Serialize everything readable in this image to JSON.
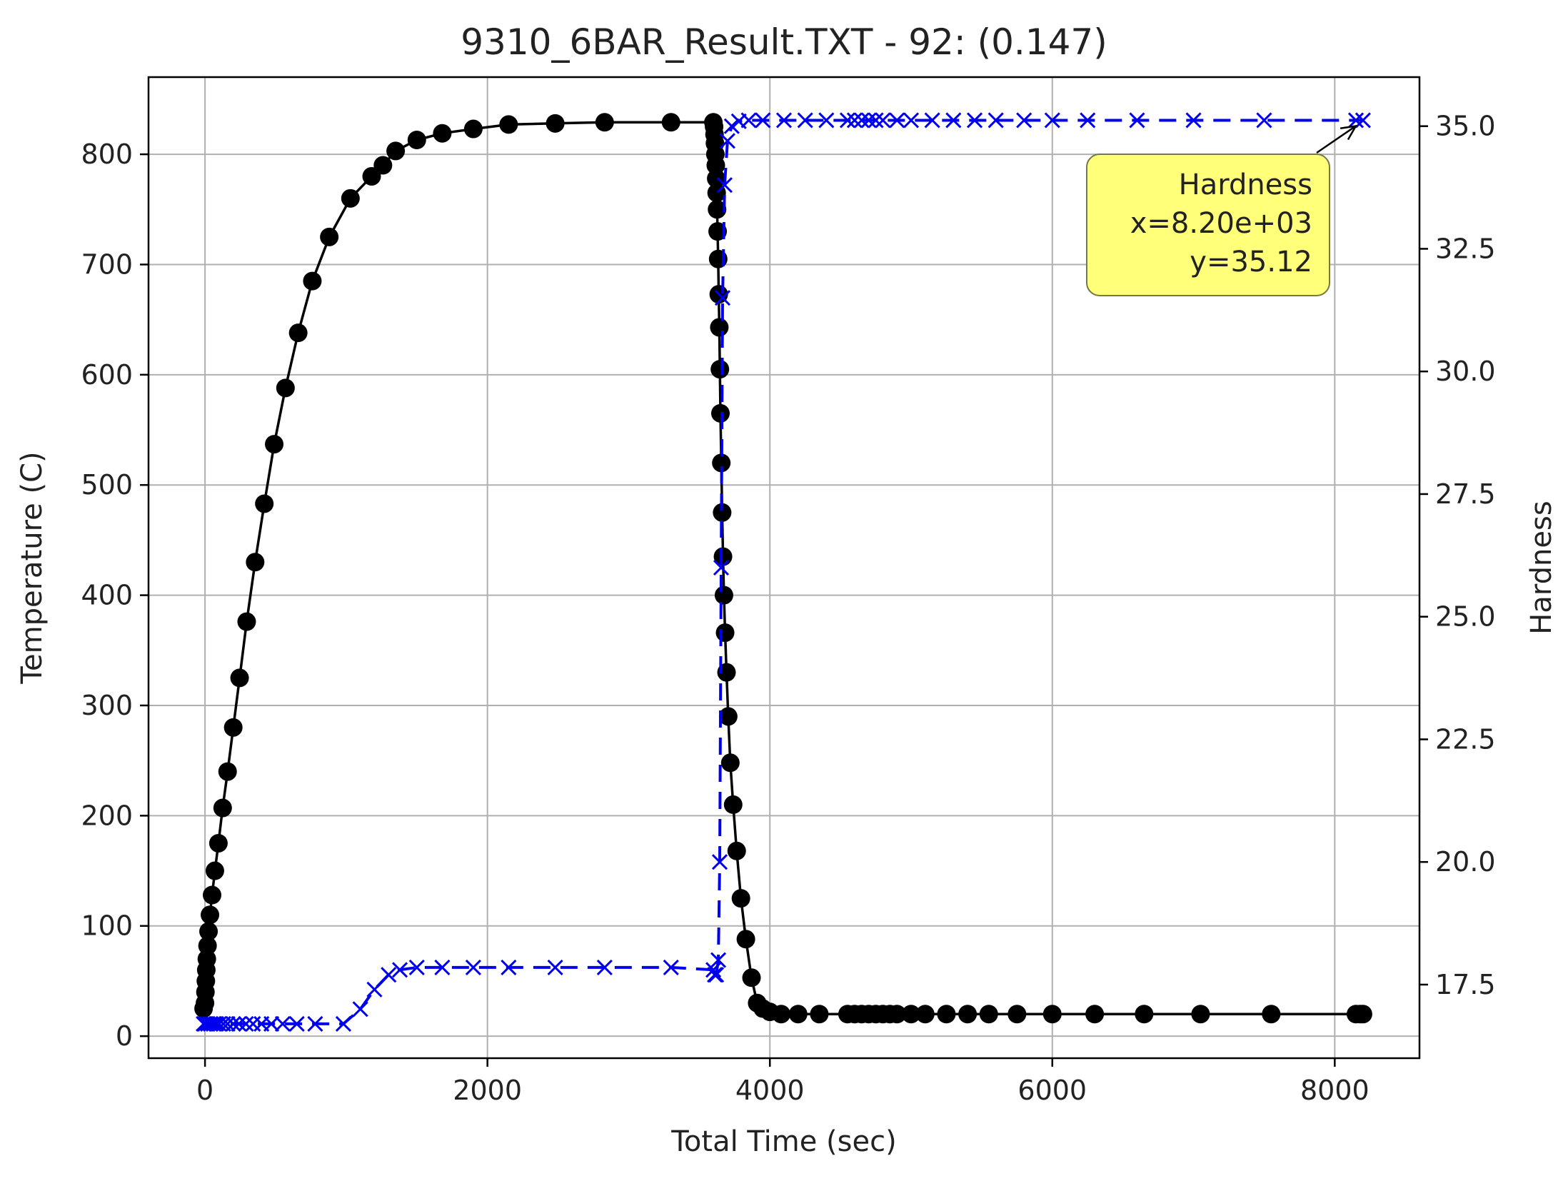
{
  "chart_data": {
    "type": "line",
    "title": "9310_6BAR_Result.TXT - 92: (0.147)",
    "xlabel": "Total Time (sec)",
    "ylabel_left": "Temperature (C)",
    "ylabel_right": "Hardness",
    "xlim": [
      -400,
      8600
    ],
    "ylim_left": [
      -20,
      870
    ],
    "ylim_right": [
      16.0,
      36.0
    ],
    "x_ticks": [
      0,
      2000,
      4000,
      6000,
      8000
    ],
    "y_ticks_left": [
      0,
      100,
      200,
      300,
      400,
      500,
      600,
      700,
      800
    ],
    "y_ticks_right": [
      "17.5",
      "20.0",
      "22.5",
      "25.0",
      "27.5",
      "30.0",
      "32.5",
      "35.0"
    ],
    "grid": true,
    "series": [
      {
        "name": "Temperature",
        "axis": "left",
        "color": "#000000",
        "marker": "circle",
        "line": "solid",
        "points": [
          [
            -10,
            25
          ],
          [
            0,
            30
          ],
          [
            3,
            40
          ],
          [
            6,
            50
          ],
          [
            9,
            60
          ],
          [
            13,
            70
          ],
          [
            18,
            82
          ],
          [
            25,
            95
          ],
          [
            35,
            110
          ],
          [
            50,
            128
          ],
          [
            70,
            150
          ],
          [
            95,
            175
          ],
          [
            125,
            207
          ],
          [
            160,
            240
          ],
          [
            200,
            280
          ],
          [
            245,
            325
          ],
          [
            295,
            376
          ],
          [
            355,
            430
          ],
          [
            420,
            483
          ],
          [
            490,
            537
          ],
          [
            570,
            588
          ],
          [
            660,
            638
          ],
          [
            760,
            685
          ],
          [
            880,
            725
          ],
          [
            1030,
            760
          ],
          [
            1180,
            780
          ],
          [
            1260,
            790
          ],
          [
            1350,
            803
          ],
          [
            1500,
            813
          ],
          [
            1680,
            819
          ],
          [
            1900,
            823
          ],
          [
            2150,
            827
          ],
          [
            2480,
            828
          ],
          [
            2830,
            829
          ],
          [
            3300,
            829
          ],
          [
            3600,
            829
          ],
          [
            3605,
            825
          ],
          [
            3608,
            818
          ],
          [
            3611,
            810
          ],
          [
            3614,
            800
          ],
          [
            3617,
            790
          ],
          [
            3620,
            778
          ],
          [
            3623,
            765
          ],
          [
            3626,
            750
          ],
          [
            3630,
            730
          ],
          [
            3634,
            705
          ],
          [
            3638,
            673
          ],
          [
            3642,
            643
          ],
          [
            3646,
            605
          ],
          [
            3650,
            565
          ],
          [
            3656,
            520
          ],
          [
            3662,
            475
          ],
          [
            3668,
            435
          ],
          [
            3675,
            400
          ],
          [
            3683,
            366
          ],
          [
            3693,
            330
          ],
          [
            3705,
            290
          ],
          [
            3720,
            248
          ],
          [
            3740,
            210
          ],
          [
            3765,
            168
          ],
          [
            3795,
            125
          ],
          [
            3830,
            88
          ],
          [
            3870,
            53
          ],
          [
            3910,
            30
          ],
          [
            3950,
            25
          ],
          [
            4000,
            22
          ],
          [
            4080,
            20
          ],
          [
            4200,
            20
          ],
          [
            4350,
            20
          ],
          [
            4550,
            20
          ],
          [
            4600,
            20
          ],
          [
            4650,
            20
          ],
          [
            4700,
            20
          ],
          [
            4750,
            20
          ],
          [
            4800,
            20
          ],
          [
            4850,
            20
          ],
          [
            4900,
            20
          ],
          [
            5000,
            20
          ],
          [
            5100,
            20
          ],
          [
            5250,
            20
          ],
          [
            5400,
            20
          ],
          [
            5550,
            20
          ],
          [
            5750,
            20
          ],
          [
            6000,
            20
          ],
          [
            6300,
            20
          ],
          [
            6650,
            20
          ],
          [
            7050,
            20
          ],
          [
            7550,
            20
          ],
          [
            8150,
            20
          ],
          [
            8180,
            20
          ],
          [
            8200,
            20
          ]
        ]
      },
      {
        "name": "Hardness",
        "axis": "right",
        "color": "#0000ee",
        "marker": "x",
        "line": "dashed",
        "points": [
          [
            -10,
            16.7
          ],
          [
            0,
            16.7
          ],
          [
            20,
            16.7
          ],
          [
            40,
            16.7
          ],
          [
            60,
            16.7
          ],
          [
            80,
            16.7
          ],
          [
            100,
            16.7
          ],
          [
            130,
            16.7
          ],
          [
            160,
            16.7
          ],
          [
            200,
            16.7
          ],
          [
            240,
            16.7
          ],
          [
            290,
            16.7
          ],
          [
            340,
            16.7
          ],
          [
            400,
            16.7
          ],
          [
            470,
            16.7
          ],
          [
            550,
            16.7
          ],
          [
            650,
            16.7
          ],
          [
            780,
            16.7
          ],
          [
            980,
            16.7
          ],
          [
            1100,
            17.0
          ],
          [
            1200,
            17.4
          ],
          [
            1300,
            17.7
          ],
          [
            1380,
            17.8
          ],
          [
            1500,
            17.85
          ],
          [
            1680,
            17.85
          ],
          [
            1900,
            17.85
          ],
          [
            2150,
            17.85
          ],
          [
            2480,
            17.85
          ],
          [
            2830,
            17.85
          ],
          [
            3300,
            17.85
          ],
          [
            3600,
            17.8
          ],
          [
            3610,
            17.7
          ],
          [
            3620,
            17.7
          ],
          [
            3635,
            18.0
          ],
          [
            3645,
            20.0
          ],
          [
            3655,
            26.0
          ],
          [
            3665,
            31.5
          ],
          [
            3680,
            33.8
          ],
          [
            3700,
            34.7
          ],
          [
            3730,
            35.0
          ],
          [
            3780,
            35.1
          ],
          [
            3850,
            35.12
          ],
          [
            3950,
            35.12
          ],
          [
            4100,
            35.12
          ],
          [
            4250,
            35.12
          ],
          [
            4400,
            35.12
          ],
          [
            4550,
            35.12
          ],
          [
            4600,
            35.12
          ],
          [
            4650,
            35.12
          ],
          [
            4700,
            35.12
          ],
          [
            4750,
            35.12
          ],
          [
            4800,
            35.12
          ],
          [
            4900,
            35.12
          ],
          [
            5000,
            35.12
          ],
          [
            5150,
            35.12
          ],
          [
            5300,
            35.12
          ],
          [
            5450,
            35.12
          ],
          [
            5600,
            35.12
          ],
          [
            5800,
            35.12
          ],
          [
            6000,
            35.12
          ],
          [
            6250,
            35.12
          ],
          [
            6600,
            35.12
          ],
          [
            7000,
            35.12
          ],
          [
            7500,
            35.12
          ],
          [
            8150,
            35.12
          ],
          [
            8200,
            35.12
          ]
        ]
      }
    ],
    "annotation": {
      "series": "Hardness",
      "lines": [
        "Hardness",
        "x=8.20e+03",
        "y=35.12"
      ],
      "point": [
        8200,
        35.12
      ],
      "box_color": "#ffff7a"
    }
  }
}
